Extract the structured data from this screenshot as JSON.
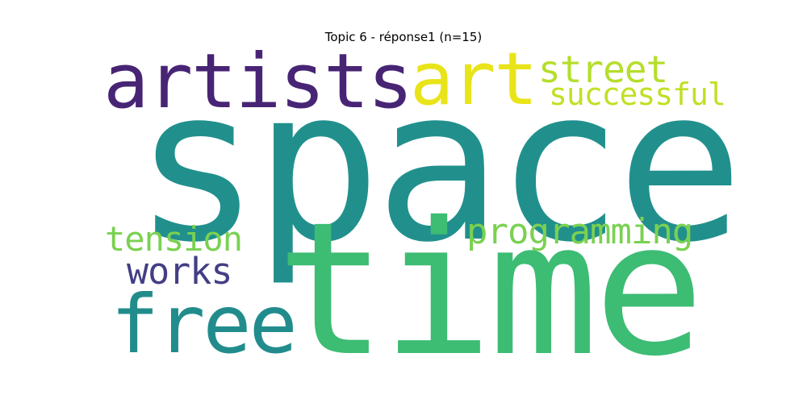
{
  "chart_data": {
    "type": "wordcloud",
    "title": "Topic 6 - réponse1 (n=15)",
    "words": [
      {
        "key": "space",
        "text": "space",
        "weight": 1.0,
        "color": "#21908d"
      },
      {
        "key": "time",
        "text": "time",
        "weight": 0.9,
        "color": "#3dbc74"
      },
      {
        "key": "artists",
        "text": "artists",
        "weight": 0.4,
        "color": "#482475"
      },
      {
        "key": "art",
        "text": "art",
        "weight": 0.38,
        "color": "#e8e419"
      },
      {
        "key": "free",
        "text": "free",
        "weight": 0.38,
        "color": "#228c8d"
      },
      {
        "key": "street",
        "text": "street",
        "weight": 0.18,
        "color": "#b5de2b"
      },
      {
        "key": "successful",
        "text": "successful",
        "weight": 0.15,
        "color": "#c2df23"
      },
      {
        "key": "tension",
        "text": "tension",
        "weight": 0.17,
        "color": "#7ad151"
      },
      {
        "key": "programming",
        "text": "programming",
        "weight": 0.17,
        "color": "#7ad151"
      },
      {
        "key": "works",
        "text": "works",
        "weight": 0.17,
        "color": "#433e85"
      }
    ]
  }
}
